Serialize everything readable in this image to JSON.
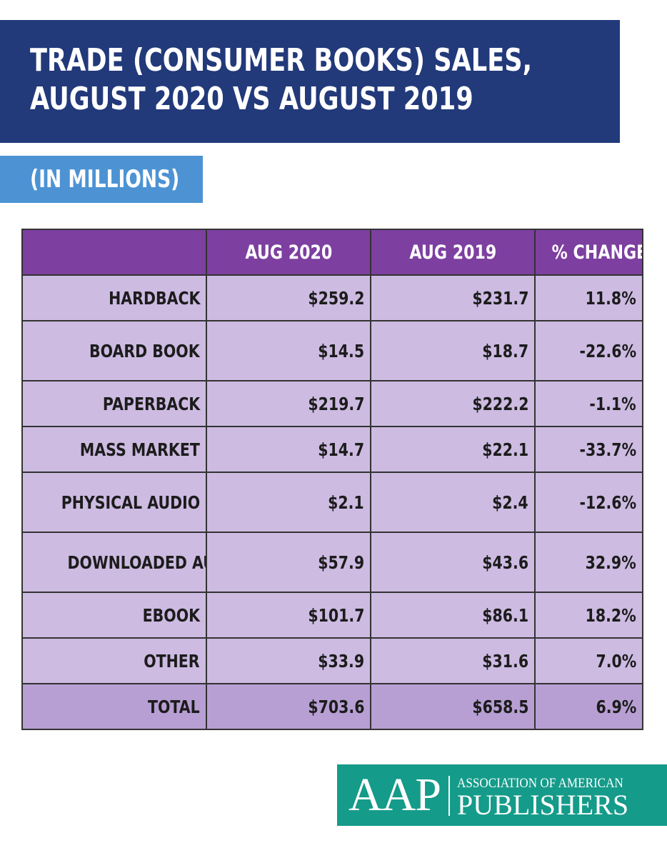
{
  "header": {
    "title_line1": "TRADE (CONSUMER BOOKS) SALES,",
    "title_line2": "AUGUST 2020 VS AUGUST 2019",
    "subtitle": "(IN MILLIONS)"
  },
  "colors": {
    "title_bg": "#22397a",
    "subtitle_bg": "#4d93d4",
    "header_row_bg": "#7d3fa0",
    "row_bg": "#cdbbe2",
    "total_row_bg": "#b79fd3",
    "logo_bg": "#159b8a"
  },
  "chart_data": {
    "type": "table",
    "title": "TRADE (CONSUMER BOOKS) SALES, AUGUST 2020 VS AUGUST 2019",
    "subtitle": "(IN MILLIONS)",
    "columns": [
      "",
      "AUG 2020",
      "AUG 2019",
      "% CHANGE"
    ],
    "rows": [
      {
        "label": "HARDBACK",
        "aug2020": "$259.2",
        "aug2019": "$231.7",
        "change": "11.8%"
      },
      {
        "label": "BOARD BOOK",
        "aug2020": "$14.5",
        "aug2019": "$18.7",
        "change": "-22.6%"
      },
      {
        "label": "PAPERBACK",
        "aug2020": "$219.7",
        "aug2019": "$222.2",
        "change": "-1.1%"
      },
      {
        "label": "MASS MARKET",
        "aug2020": "$14.7",
        "aug2019": "$22.1",
        "change": "-33.7%"
      },
      {
        "label": "PHYSICAL AUDIO",
        "aug2020": "$2.1",
        "aug2019": "$2.4",
        "change": "-12.6%"
      },
      {
        "label": "DOWNLOADED AUDIO",
        "aug2020": "$57.9",
        "aug2019": "$43.6",
        "change": "32.9%"
      },
      {
        "label": "EBOOK",
        "aug2020": "$101.7",
        "aug2019": "$86.1",
        "change": "18.2%"
      },
      {
        "label": "OTHER",
        "aug2020": "$33.9",
        "aug2019": "$31.6",
        "change": "7.0%"
      },
      {
        "label": "TOTAL",
        "aug2020": "$703.6",
        "aug2019": "$658.5",
        "change": "6.9%"
      }
    ]
  },
  "logo": {
    "abbr": "AAP",
    "line1": "ASSOCIATION OF AMERICAN",
    "line2": "PUBLISHERS"
  }
}
